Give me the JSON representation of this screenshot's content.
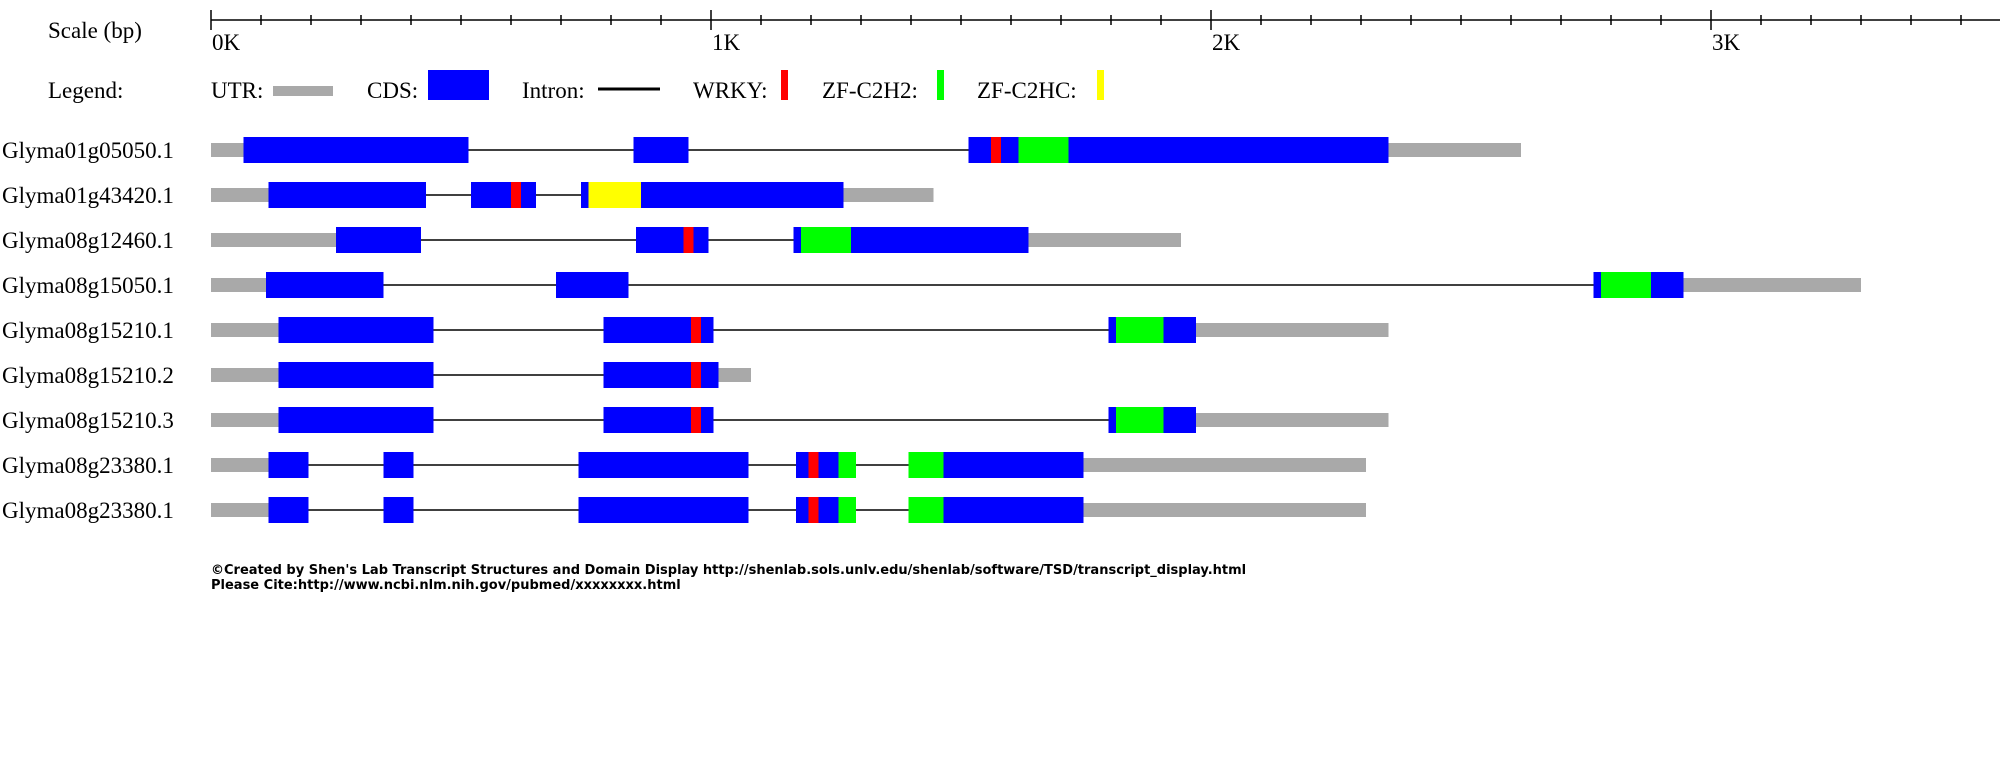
{
  "scale": {
    "label": "Scale (bp)",
    "ticks": [
      "0K",
      "1K",
      "2K",
      "3K"
    ]
  },
  "legend": {
    "label": "Legend:",
    "items": [
      {
        "label": "UTR:",
        "kind": "utr",
        "color": "#a9a9a9"
      },
      {
        "label": "CDS:",
        "kind": "cds",
        "color": "#0000ff"
      },
      {
        "label": "Intron:",
        "kind": "intron",
        "color": "#000000"
      },
      {
        "label": "WRKY:",
        "kind": "domain",
        "color": "#ff0000"
      },
      {
        "label": "ZF-C2H2:",
        "kind": "domain",
        "color": "#00ff00"
      },
      {
        "label": "ZF-C2HC:",
        "kind": "domain",
        "color": "#ffff00"
      }
    ]
  },
  "colors": {
    "utr": "#a9a9a9",
    "cds": "#0000ff",
    "intron": "#000000",
    "wrky": "#ff0000",
    "zf_c2h2": "#00ff00",
    "zf_c2hc": "#ffff00"
  },
  "transcripts": [
    {
      "name": "Glyma01g05050.1",
      "start": 0,
      "end": 2620,
      "utrs": [
        [
          0,
          65
        ],
        [
          2355,
          2620
        ]
      ],
      "cds": [
        [
          65,
          515
        ],
        [
          845,
          955
        ],
        [
          1515,
          2355
        ]
      ],
      "domains": [
        {
          "type": "wrky",
          "range": [
            1560,
            1580
          ]
        },
        {
          "type": "zf_c2h2",
          "range": [
            1615,
            1715
          ]
        }
      ]
    },
    {
      "name": "Glyma01g43420.1",
      "start": 0,
      "end": 1445,
      "utrs": [
        [
          0,
          115
        ],
        [
          1265,
          1445
        ]
      ],
      "cds": [
        [
          115,
          430
        ],
        [
          520,
          650
        ],
        [
          740,
          1265
        ]
      ],
      "domains": [
        {
          "type": "wrky",
          "range": [
            600,
            620
          ]
        },
        {
          "type": "zf_c2hc",
          "range": [
            755,
            860
          ]
        }
      ]
    },
    {
      "name": "Glyma08g12460.1",
      "start": 0,
      "end": 1940,
      "utrs": [
        [
          0,
          250
        ],
        [
          1635,
          1940
        ]
      ],
      "cds": [
        [
          250,
          420
        ],
        [
          850,
          995
        ],
        [
          1165,
          1635
        ]
      ],
      "domains": [
        {
          "type": "wrky",
          "range": [
            945,
            965
          ]
        },
        {
          "type": "zf_c2h2",
          "range": [
            1180,
            1280
          ]
        }
      ]
    },
    {
      "name": "Glyma08g15050.1",
      "start": 0,
      "end": 3300,
      "utrs": [
        [
          0,
          110
        ],
        [
          2945,
          3300
        ]
      ],
      "cds": [
        [
          110,
          345
        ],
        [
          690,
          835
        ],
        [
          2765,
          2945
        ]
      ],
      "domains": [
        {
          "type": "zf_c2h2",
          "range": [
            2780,
            2880
          ]
        }
      ]
    },
    {
      "name": "Glyma08g15210.1",
      "start": 0,
      "end": 2355,
      "utrs": [
        [
          0,
          135
        ],
        [
          1970,
          2355
        ]
      ],
      "cds": [
        [
          135,
          445
        ],
        [
          785,
          1005
        ],
        [
          1795,
          1970
        ]
      ],
      "domains": [
        {
          "type": "wrky",
          "range": [
            960,
            980
          ]
        },
        {
          "type": "zf_c2h2",
          "range": [
            1810,
            1905
          ]
        }
      ]
    },
    {
      "name": "Glyma08g15210.2",
      "start": 0,
      "end": 1080,
      "utrs": [
        [
          0,
          135
        ],
        [
          1015,
          1080
        ]
      ],
      "cds": [
        [
          135,
          445
        ],
        [
          785,
          1015
        ]
      ],
      "domains": [
        {
          "type": "wrky",
          "range": [
            960,
            980
          ]
        }
      ]
    },
    {
      "name": "Glyma08g15210.3",
      "start": 0,
      "end": 2355,
      "utrs": [
        [
          0,
          135
        ],
        [
          1970,
          2355
        ]
      ],
      "cds": [
        [
          135,
          445
        ],
        [
          785,
          1005
        ],
        [
          1795,
          1970
        ]
      ],
      "domains": [
        {
          "type": "wrky",
          "range": [
            960,
            980
          ]
        },
        {
          "type": "zf_c2h2",
          "range": [
            1810,
            1905
          ]
        }
      ]
    },
    {
      "name": "Glyma08g23380.1",
      "start": 0,
      "end": 2310,
      "utrs": [
        [
          0,
          115
        ],
        [
          1745,
          2310
        ]
      ],
      "cds": [
        [
          115,
          195
        ],
        [
          345,
          405
        ],
        [
          735,
          1075
        ],
        [
          1170,
          1290
        ],
        [
          1395,
          1745
        ]
      ],
      "domains": [
        {
          "type": "wrky",
          "range": [
            1195,
            1215
          ]
        },
        {
          "type": "zf_c2h2",
          "range": [
            1255,
            1290
          ]
        },
        {
          "type": "zf_c2h2",
          "range": [
            1395,
            1465
          ]
        }
      ]
    },
    {
      "name": "Glyma08g23380.1",
      "start": 0,
      "end": 2310,
      "utrs": [
        [
          0,
          115
        ],
        [
          1745,
          2310
        ]
      ],
      "cds": [
        [
          115,
          195
        ],
        [
          345,
          405
        ],
        [
          735,
          1075
        ],
        [
          1170,
          1290
        ],
        [
          1395,
          1745
        ]
      ],
      "domains": [
        {
          "type": "wrky",
          "range": [
            1195,
            1215
          ]
        },
        {
          "type": "zf_c2h2",
          "range": [
            1255,
            1290
          ]
        },
        {
          "type": "zf_c2h2",
          "range": [
            1395,
            1465
          ]
        }
      ]
    }
  ],
  "footer": {
    "line1": "©Created by Shen's Lab Transcript Structures and Domain Display http://shenlab.sols.unlv.edu/shenlab/software/TSD/transcript_display.html",
    "line2": "Please Cite:http://www.ncbi.nlm.nih.gov/pubmed/xxxxxxxx.html"
  }
}
